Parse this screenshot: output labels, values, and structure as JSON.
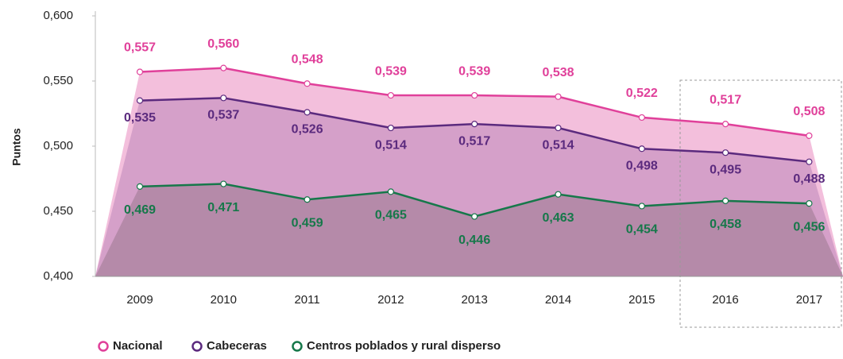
{
  "chart_data": {
    "type": "area-line",
    "y_label": "Puntos",
    "categories": [
      "2009",
      "2010",
      "2011",
      "2012",
      "2013",
      "2014",
      "2015",
      "2016",
      "2017"
    ],
    "series": [
      {
        "name": "Nacional",
        "color": "#e0409a",
        "fill": "#f3bfdc",
        "values": [
          0.557,
          0.56,
          0.548,
          0.539,
          0.539,
          0.538,
          0.522,
          0.517,
          0.508
        ],
        "value_labels": [
          "0,557",
          "0,560",
          "0,548",
          "0,539",
          "0,539",
          "0,538",
          "0,522",
          "0,517",
          "0,508"
        ]
      },
      {
        "name": "Cabeceras",
        "color": "#5b2a7e",
        "fill": "#d5a0c9",
        "values": [
          0.535,
          0.537,
          0.526,
          0.514,
          0.517,
          0.514,
          0.498,
          0.495,
          0.488
        ],
        "value_labels": [
          "0,535",
          "0,537",
          "0,526",
          "0,514",
          "0,517",
          "0,514",
          "0,498",
          "0,495",
          "0,488"
        ]
      },
      {
        "name": "Centros poblados y rural disperso",
        "color": "#16784a",
        "fill": "#b58aa9",
        "values": [
          0.469,
          0.471,
          0.459,
          0.465,
          0.446,
          0.463,
          0.454,
          0.458,
          0.456
        ],
        "value_labels": [
          "0,469",
          "0,471",
          "0,459",
          "0,465",
          "0,446",
          "0,463",
          "0,454",
          "0,458",
          "0,456"
        ]
      }
    ],
    "ylim": [
      0.4,
      0.6
    ],
    "yticks": [
      {
        "value": 0.4,
        "label": "0,400"
      },
      {
        "value": 0.45,
        "label": "0,450"
      },
      {
        "value": 0.5,
        "label": "0,500"
      },
      {
        "value": 0.55,
        "label": "0,550"
      },
      {
        "value": 0.6,
        "label": "0,600"
      }
    ]
  }
}
